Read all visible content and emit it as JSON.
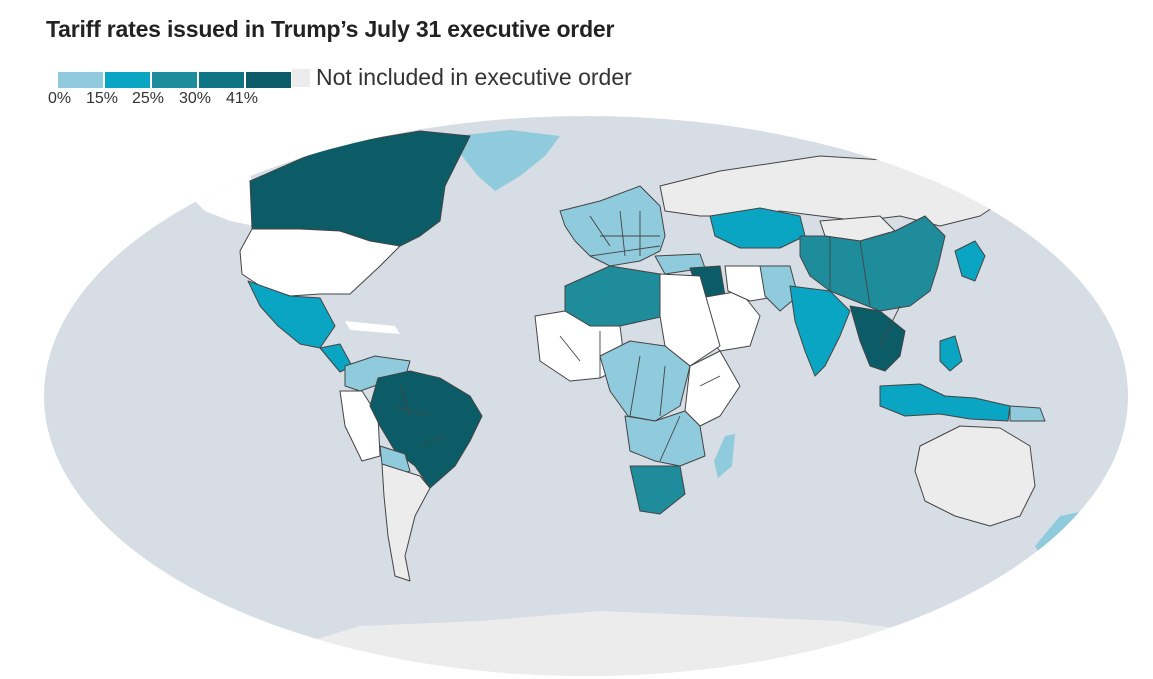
{
  "title": "Tariff rates issued in Trump’s July 31 executive order",
  "legend": {
    "bins": [
      {
        "label": "0%",
        "color": "#8fcbdc"
      },
      {
        "label": "15%",
        "color": "#0aa5c3"
      },
      {
        "label": "25%",
        "color": "#1f8c9b"
      },
      {
        "label": "30%",
        "color": "#0f7583"
      },
      {
        "label": "41%",
        "color": "#0b5c66"
      }
    ],
    "not_included_label": "Not included in executive order",
    "not_included_color": "#ececec"
  },
  "colors": {
    "ocean": "#d6dde4",
    "not_included": "#ececec",
    "us": "#ffffff",
    "border": "#444444"
  }
}
